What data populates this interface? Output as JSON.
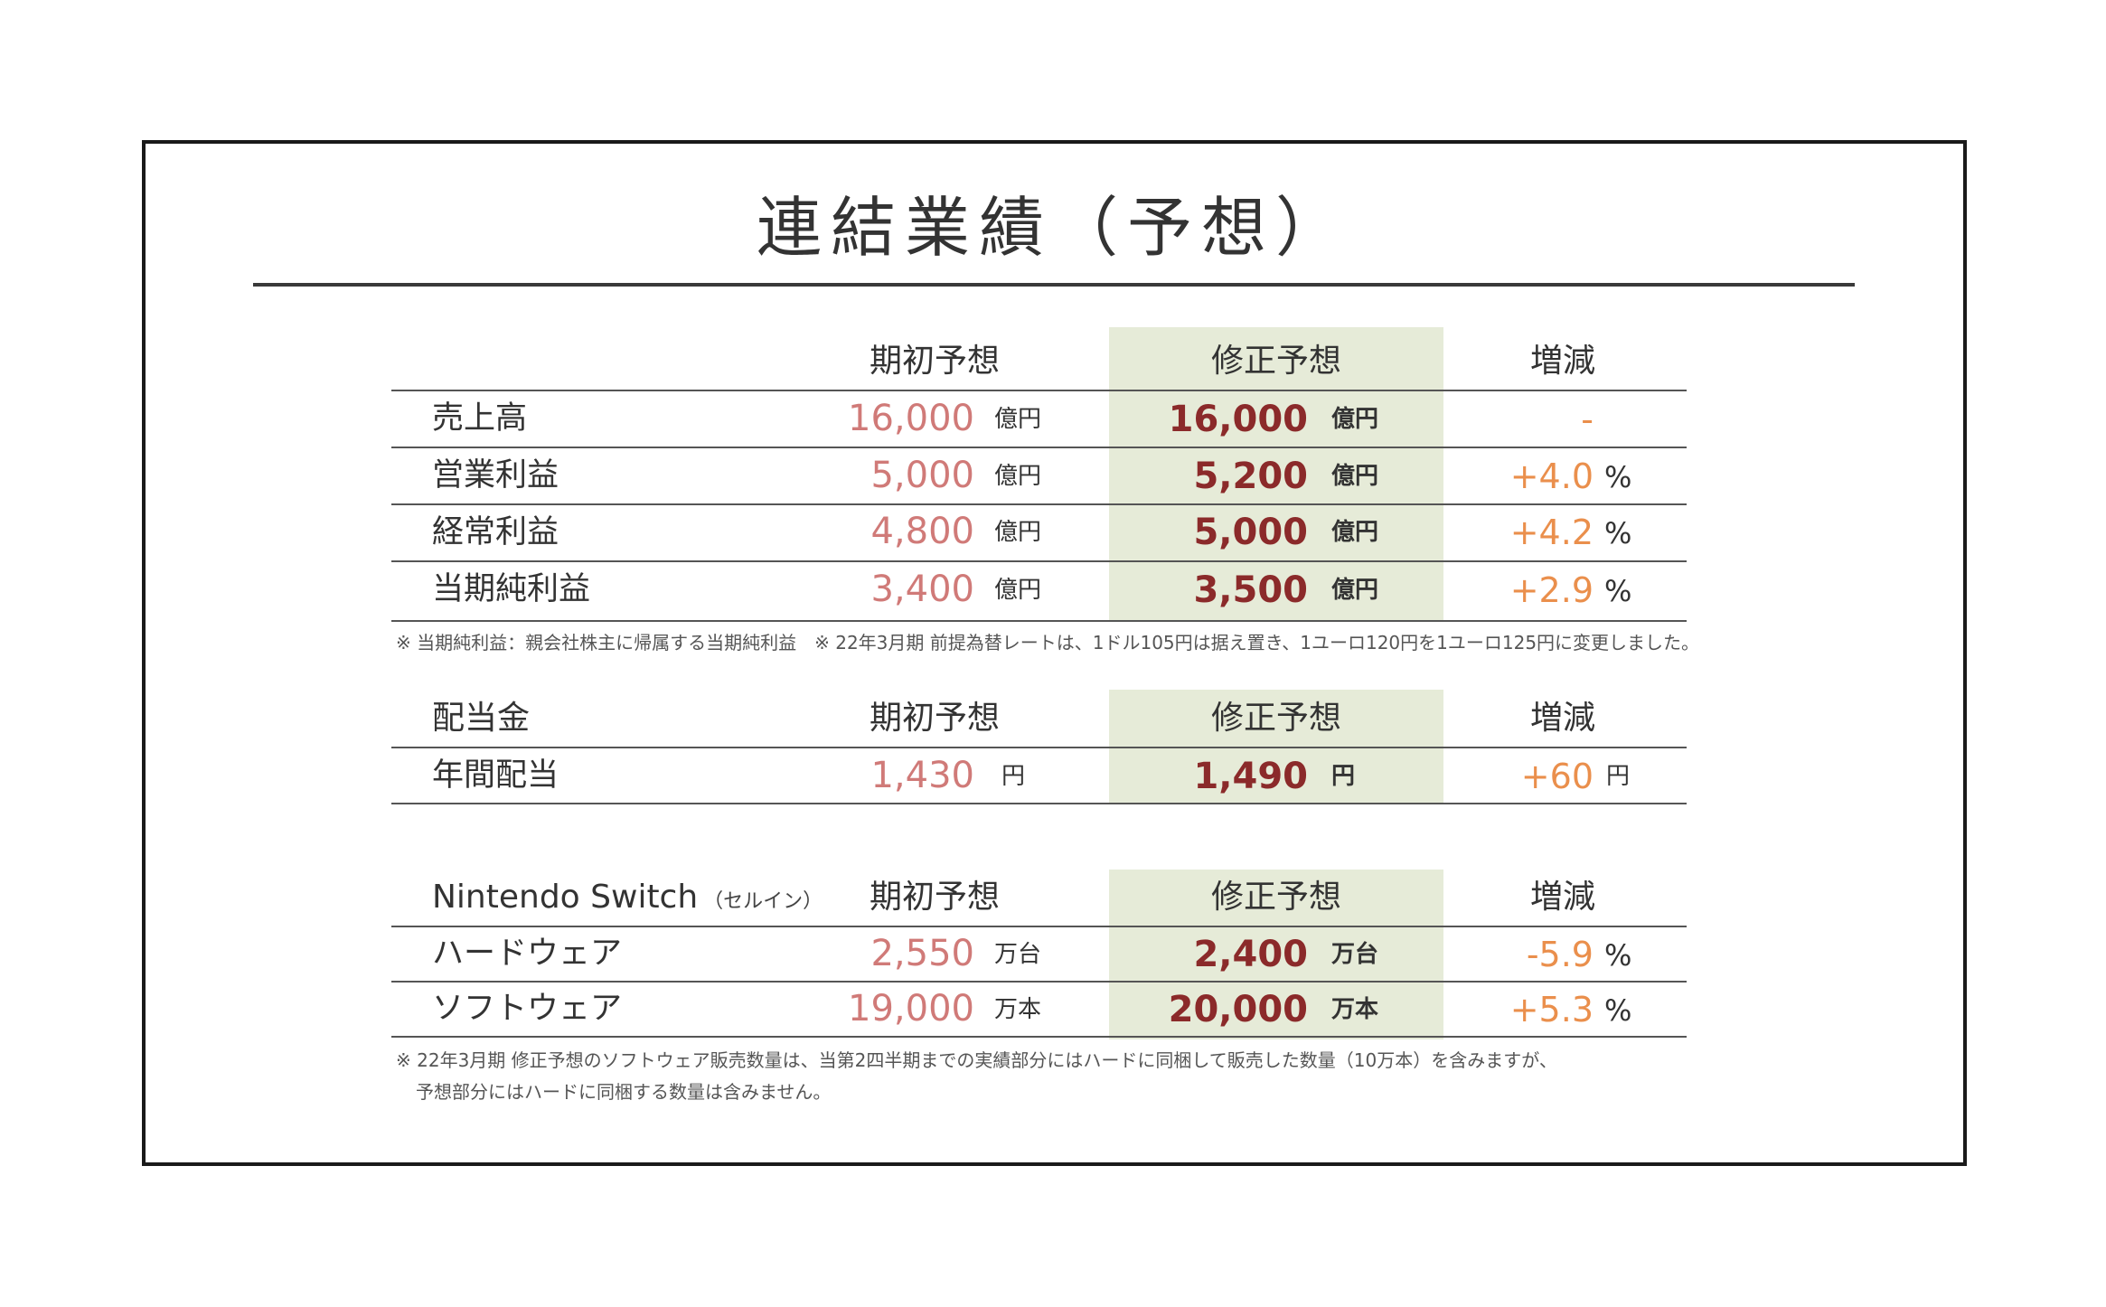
{
  "title": "連結業績（予想）",
  "headers": {
    "initial": "期初予想",
    "revised": "修正予想",
    "change": "増減"
  },
  "earnings": {
    "rows": [
      {
        "label": "売上高",
        "initial": "16,000",
        "initial_unit": "億円",
        "revised": "16,000",
        "revised_unit": "億円",
        "change": "-",
        "change_unit": ""
      },
      {
        "label": "営業利益",
        "initial": "5,000",
        "initial_unit": "億円",
        "revised": "5,200",
        "revised_unit": "億円",
        "change": "+4.0",
        "change_unit": "%"
      },
      {
        "label": "経常利益",
        "initial": "4,800",
        "initial_unit": "億円",
        "revised": "5,000",
        "revised_unit": "億円",
        "change": "+4.2",
        "change_unit": "%"
      },
      {
        "label": "当期純利益",
        "initial": "3,400",
        "initial_unit": "億円",
        "revised": "3,500",
        "revised_unit": "億円",
        "change": "+2.9",
        "change_unit": "%"
      }
    ],
    "note": "※ 当期純利益：親会社株主に帰属する当期純利益　※ 22年3月期 前提為替レートは、1ドル105円は据え置き、1ユーロ120円を1ユーロ125円に変更しました。"
  },
  "dividend": {
    "section_label": "配当金",
    "rows": [
      {
        "label": "年間配当",
        "initial": "1,430",
        "initial_unit": "円",
        "revised": "1,490",
        "revised_unit": "円",
        "change": "+60",
        "change_unit": "円"
      }
    ]
  },
  "switch": {
    "section_label": "Nintendo Switch",
    "section_sub": "（セルイン）",
    "rows": [
      {
        "label": "ハードウェア",
        "initial": "2,550",
        "initial_unit": "万台",
        "revised": "2,400",
        "revised_unit": "万台",
        "change": "-5.9",
        "change_unit": "%"
      },
      {
        "label": "ソフトウェア",
        "initial": "19,000",
        "initial_unit": "万本",
        "revised": "20,000",
        "revised_unit": "万本",
        "change": "+5.3",
        "change_unit": "%"
      }
    ],
    "note_line1": "※ 22年3月期 修正予想のソフトウェア販売数量は、当第2四半期までの実績部分にはハードに同梱して販売した数量（10万本）を含みますが、",
    "note_line2": "予想部分にはハードに同梱する数量は含みません。"
  },
  "colors": {
    "initial": "#d07a78",
    "revised": "#8b2a2a",
    "change": "#ea8f4c",
    "highlight": "#e6ebd8"
  }
}
